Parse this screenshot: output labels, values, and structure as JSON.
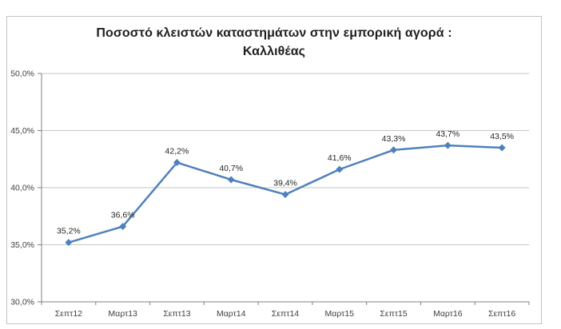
{
  "title": {
    "line1": "Ποσοστό κλειστών καταστημάτων στην εμπορική αγορά :",
    "line2": "Καλλιθέας"
  },
  "chart_data": {
    "type": "line",
    "categories": [
      "Σεπτ12",
      "Μαρτ13",
      "Σεπτ13",
      "Μαρτ14",
      "Σεπτ14",
      "Μαρτ15",
      "Σεπτ15",
      "Μαρτ16",
      "Σεπτ16"
    ],
    "values": [
      35.2,
      36.6,
      42.2,
      40.7,
      39.4,
      41.6,
      43.3,
      43.7,
      43.5
    ],
    "point_labels": [
      "35,2%",
      "36,6%",
      "42,2%",
      "40,7%",
      "39,4%",
      "41,6%",
      "43,3%",
      "43,7%",
      "43,5%"
    ],
    "title": "Ποσοστό κλειστών καταστημάτων στην εμπορική αγορά : Καλλιθέας",
    "xlabel": "",
    "ylabel": "",
    "ylim": [
      30,
      50
    ],
    "yticks": [
      30,
      35,
      40,
      45,
      50
    ],
    "ytick_labels": [
      "30,0%",
      "35,0%",
      "40,0%",
      "45,0%",
      "50,0%"
    ],
    "grid": "horizontal",
    "legend": "none",
    "marker": "diamond",
    "colors": {
      "series": "#4F81BD",
      "gridline": "#C6C6C6",
      "axis": "#808080",
      "frame_border": "#C3C3C3",
      "axis_text": "#3F3F3F",
      "label_text": "#262626",
      "title_text": "#1F1F1F"
    }
  }
}
